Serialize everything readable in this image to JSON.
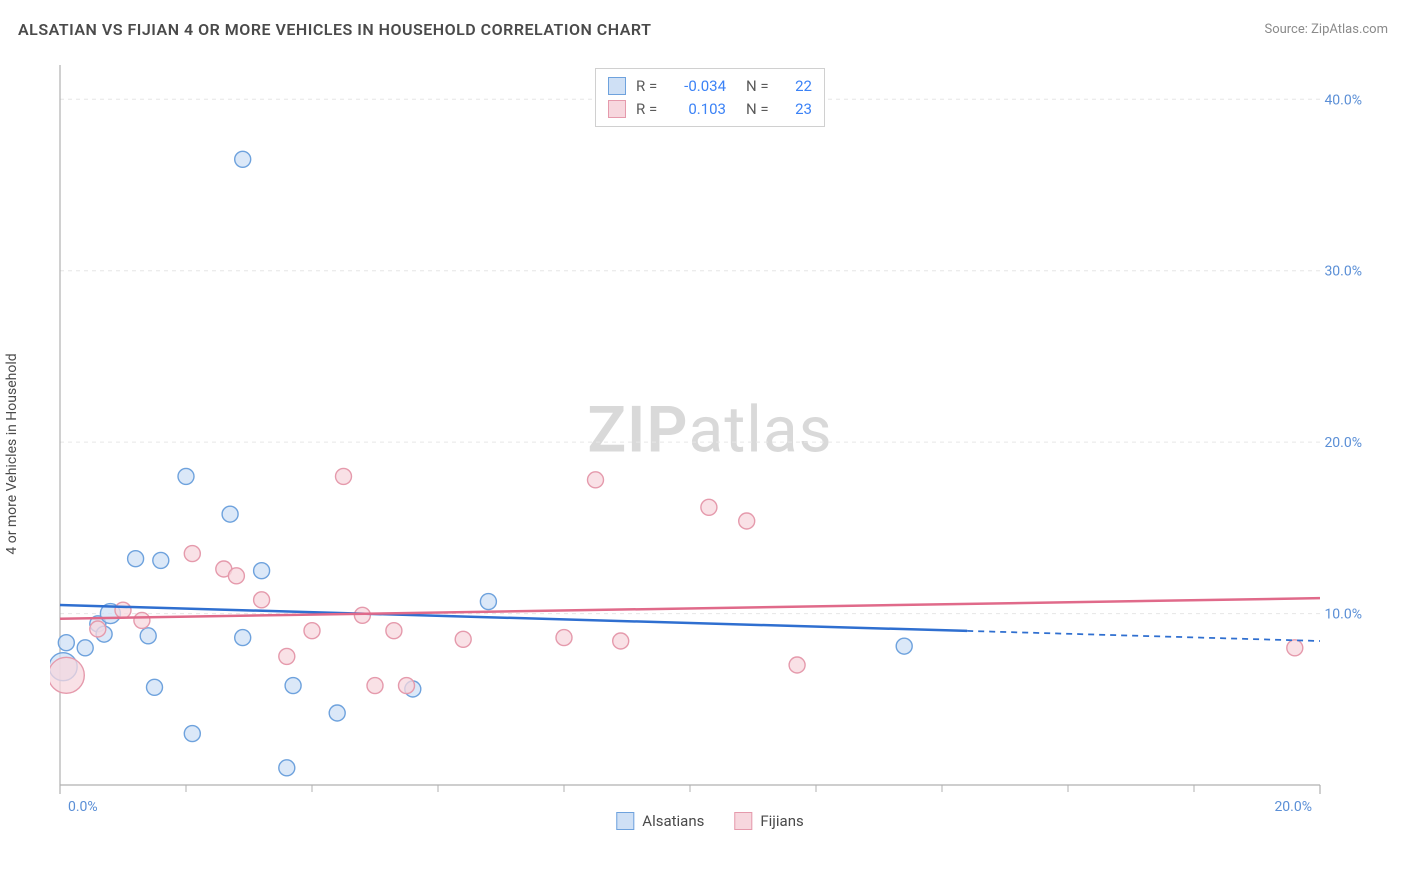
{
  "title": "ALSATIAN VS FIJIAN 4 OR MORE VEHICLES IN HOUSEHOLD CORRELATION CHART",
  "source": "Source: ZipAtlas.com",
  "ylabel": "4 or more Vehicles in Household",
  "watermark": {
    "zip": "ZIP",
    "atlas": "atlas"
  },
  "legend_top": {
    "rows": [
      {
        "color_fill": "#cfe0f5",
        "color_stroke": "#6ea2dd",
        "r_label": "R =",
        "r_value": "-0.034",
        "n_label": "N =",
        "n_value": "22"
      },
      {
        "color_fill": "#f7d7de",
        "color_stroke": "#e59aac",
        "r_label": "R =",
        "r_value": "0.103",
        "n_label": "N =",
        "n_value": "23"
      }
    ]
  },
  "legend_bottom": {
    "items": [
      {
        "label": "Alsatians",
        "fill": "#cfe0f5",
        "stroke": "#6ea2dd"
      },
      {
        "label": "Fijians",
        "fill": "#f7d7de",
        "stroke": "#e59aac"
      }
    ]
  },
  "chart": {
    "type": "scatter",
    "background_color": "#ffffff",
    "grid_color": "#e6e6e6",
    "axis_color": "#b0b0b0",
    "tick_label_color": "#5b8fd6",
    "xlim": [
      0,
      20
    ],
    "ylim": [
      0,
      42
    ],
    "x_ticks": [
      0,
      20
    ],
    "x_tick_labels": [
      "0.0%",
      "20.0%"
    ],
    "x_minor_ticks": [
      2,
      4,
      6,
      8,
      10,
      12,
      14,
      16,
      18
    ],
    "y_ticks": [
      10,
      20,
      30,
      40
    ],
    "y_tick_labels": [
      "10.0%",
      "20.0%",
      "30.0%",
      "40.0%"
    ],
    "series": [
      {
        "name": "Alsatians",
        "marker_fill": "#cfe0f5",
        "marker_stroke": "#6ea2dd",
        "marker_opacity": 0.75,
        "line_color": "#2f6fd0",
        "line_width": 2.5,
        "reg_y_at_x0": 10.5,
        "reg_y_at_xmax": 8.4,
        "reg_solid_until_x": 14.4,
        "points": [
          {
            "x": 0.05,
            "y": 6.9,
            "r": 14
          },
          {
            "x": 0.1,
            "y": 8.3,
            "r": 8
          },
          {
            "x": 0.4,
            "y": 8.0,
            "r": 8
          },
          {
            "x": 0.6,
            "y": 9.4,
            "r": 8
          },
          {
            "x": 0.7,
            "y": 8.8,
            "r": 8
          },
          {
            "x": 0.8,
            "y": 10.0,
            "r": 10
          },
          {
            "x": 1.2,
            "y": 13.2,
            "r": 8
          },
          {
            "x": 1.4,
            "y": 8.7,
            "r": 8
          },
          {
            "x": 1.6,
            "y": 13.1,
            "r": 8
          },
          {
            "x": 1.5,
            "y": 5.7,
            "r": 8
          },
          {
            "x": 2.0,
            "y": 18.0,
            "r": 8
          },
          {
            "x": 2.1,
            "y": 3.0,
            "r": 8
          },
          {
            "x": 2.7,
            "y": 15.8,
            "r": 8
          },
          {
            "x": 2.9,
            "y": 36.5,
            "r": 8
          },
          {
            "x": 2.9,
            "y": 8.6,
            "r": 8
          },
          {
            "x": 3.2,
            "y": 12.5,
            "r": 8
          },
          {
            "x": 3.6,
            "y": 1.0,
            "r": 8
          },
          {
            "x": 3.7,
            "y": 5.8,
            "r": 8
          },
          {
            "x": 4.4,
            "y": 4.2,
            "r": 8
          },
          {
            "x": 5.6,
            "y": 5.6,
            "r": 8
          },
          {
            "x": 6.8,
            "y": 10.7,
            "r": 8
          },
          {
            "x": 13.4,
            "y": 8.1,
            "r": 8
          }
        ]
      },
      {
        "name": "Fijians",
        "marker_fill": "#f7d7de",
        "marker_stroke": "#e59aac",
        "marker_opacity": 0.75,
        "line_color": "#e06a8a",
        "line_width": 2.5,
        "reg_y_at_x0": 9.7,
        "reg_y_at_xmax": 10.9,
        "reg_solid_until_x": 20,
        "points": [
          {
            "x": 0.1,
            "y": 6.4,
            "r": 18
          },
          {
            "x": 0.6,
            "y": 9.1,
            "r": 8
          },
          {
            "x": 1.0,
            "y": 10.2,
            "r": 8
          },
          {
            "x": 1.3,
            "y": 9.6,
            "r": 8
          },
          {
            "x": 2.1,
            "y": 13.5,
            "r": 8
          },
          {
            "x": 2.6,
            "y": 12.6,
            "r": 8
          },
          {
            "x": 2.8,
            "y": 12.2,
            "r": 8
          },
          {
            "x": 3.2,
            "y": 10.8,
            "r": 8
          },
          {
            "x": 3.6,
            "y": 7.5,
            "r": 8
          },
          {
            "x": 4.0,
            "y": 9.0,
            "r": 8
          },
          {
            "x": 4.5,
            "y": 18.0,
            "r": 8
          },
          {
            "x": 4.8,
            "y": 9.9,
            "r": 8
          },
          {
            "x": 5.0,
            "y": 5.8,
            "r": 8
          },
          {
            "x": 5.3,
            "y": 9.0,
            "r": 8
          },
          {
            "x": 5.5,
            "y": 5.8,
            "r": 8
          },
          {
            "x": 6.4,
            "y": 8.5,
            "r": 8
          },
          {
            "x": 8.0,
            "y": 8.6,
            "r": 8
          },
          {
            "x": 8.5,
            "y": 17.8,
            "r": 8
          },
          {
            "x": 8.9,
            "y": 8.4,
            "r": 8
          },
          {
            "x": 10.3,
            "y": 16.2,
            "r": 8
          },
          {
            "x": 10.9,
            "y": 15.4,
            "r": 8
          },
          {
            "x": 11.7,
            "y": 7.0,
            "r": 8
          },
          {
            "x": 19.6,
            "y": 8.0,
            "r": 8
          }
        ]
      }
    ]
  }
}
